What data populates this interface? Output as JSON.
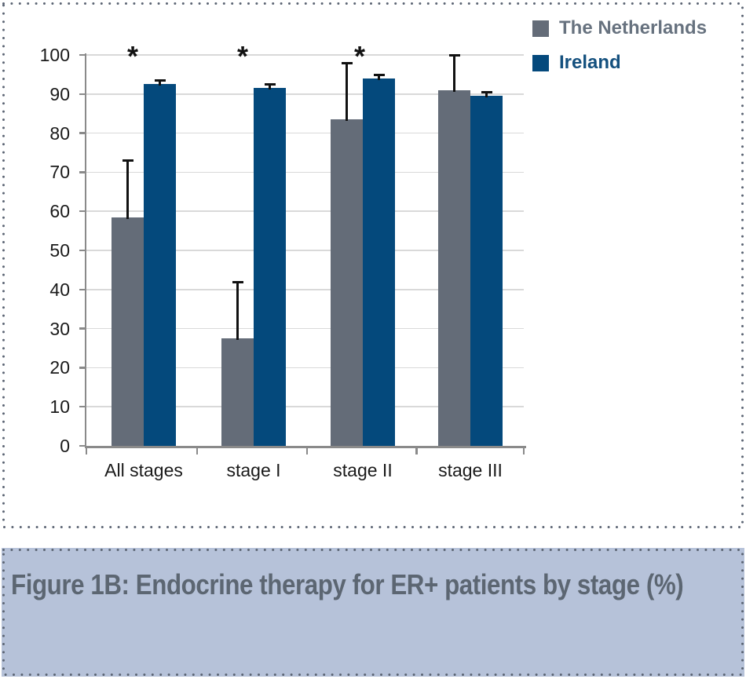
{
  "figure": {
    "caption": "Figure 1B: Endocrine therapy for ER+ patients by stage (%)"
  },
  "colors": {
    "netherlands_bar": "#646c78",
    "ireland_bar": "#04497c",
    "netherlands_legend_text": "#67727f",
    "ireland_legend_text": "#14507e",
    "gridline": "#d9d9d9",
    "axis": "#8a8a8a",
    "tick_text": "#1a1a1a",
    "error_bar": "#111111",
    "significance_mark": "#111111",
    "dotted_border": "#5b6473",
    "caption_bg": "#b6c2d9",
    "caption_text": "#5c6672"
  },
  "chart_data": {
    "type": "bar",
    "title": "",
    "xlabel": "",
    "ylabel": "",
    "categories": [
      "All stages",
      "stage I",
      "stage II",
      "stage III"
    ],
    "series": [
      {
        "name": "The Netherlands",
        "color": "#646c78",
        "values": [
          58.5,
          27.5,
          83.5,
          91
        ],
        "error_plus": [
          14.5,
          14.5,
          14.5,
          9
        ]
      },
      {
        "name": "Ireland",
        "color": "#04497c",
        "values": [
          92.5,
          91.5,
          94,
          89.5
        ],
        "error_plus": [
          1,
          1,
          1,
          1
        ]
      }
    ],
    "significance": {
      "symbol": "*",
      "categories": [
        "All stages",
        "stage I",
        "stage II"
      ]
    },
    "ylim": [
      0,
      100
    ],
    "ytick_step": 10,
    "grid": true,
    "legend_position": "top-right"
  }
}
